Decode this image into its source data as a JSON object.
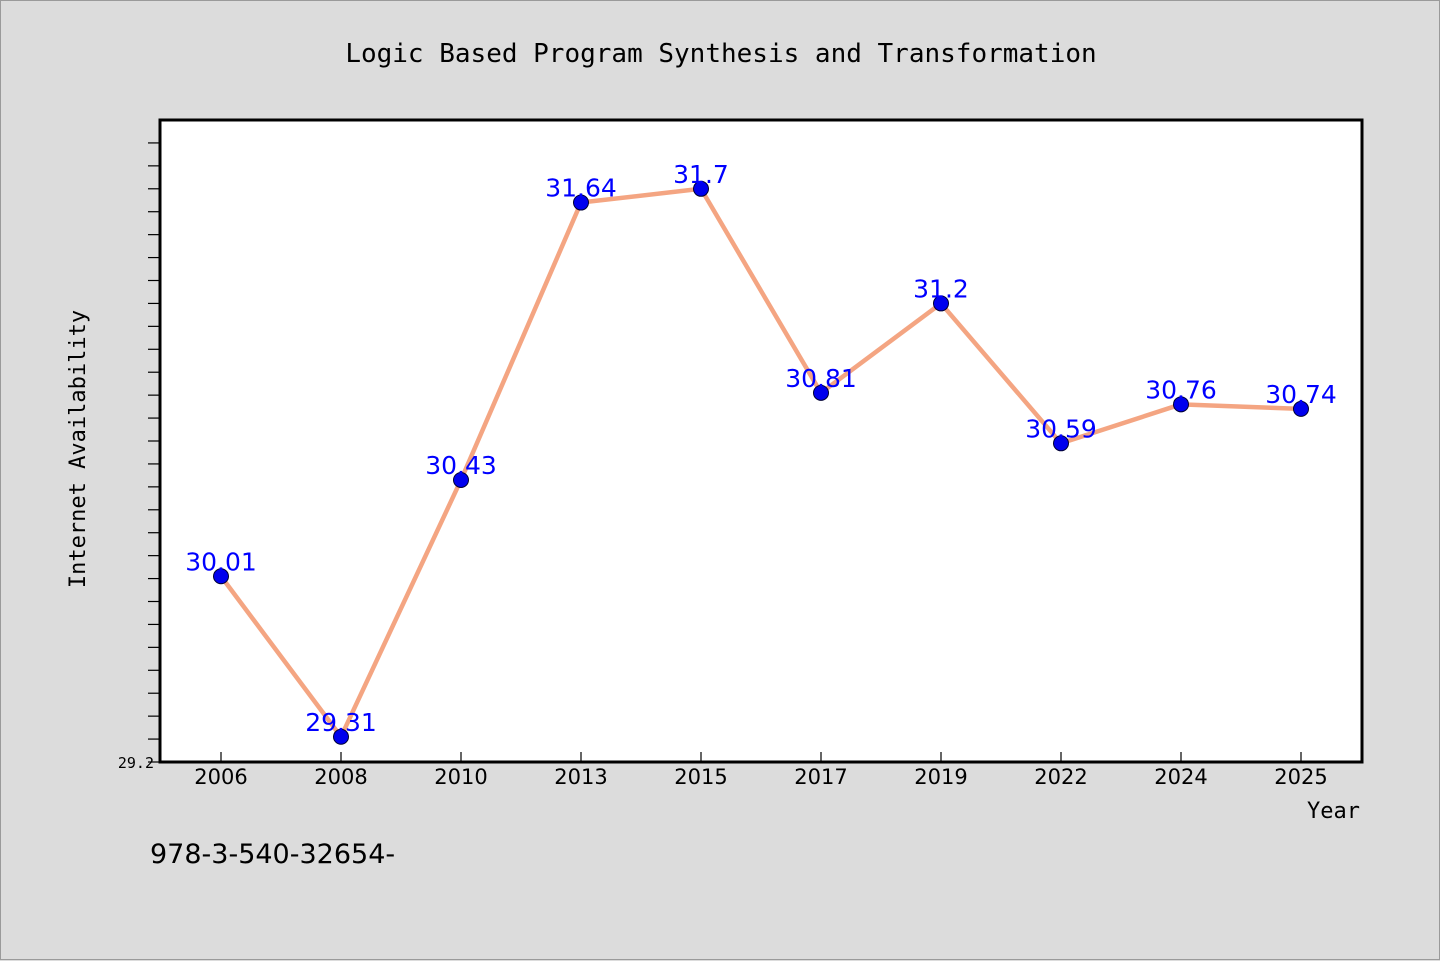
{
  "chart_data": {
    "type": "line",
    "title": "Logic Based Program Synthesis and Transformation",
    "xlabel": "Year",
    "ylabel": "Internet Availability",
    "categories": [
      "2006",
      "2008",
      "2010",
      "2013",
      "2015",
      "2017",
      "2019",
      "2022",
      "2024",
      "2025"
    ],
    "series": [
      {
        "values": [
          30.01,
          29.31,
          30.43,
          31.64,
          31.7,
          30.81,
          31.2,
          30.59,
          30.76,
          30.74
        ],
        "labels": [
          "30.01",
          "29.31",
          "30.43",
          "31.64",
          "31.7",
          "30.81",
          "31.2",
          "30.59",
          "30.76",
          "30.74"
        ]
      }
    ],
    "ylim": [
      29.2,
      32.0
    ],
    "ytick_labels": [
      "29.2"
    ],
    "grid": false,
    "line_color": "#f4a582",
    "marker_color": "#0000ee",
    "label_color": "#0000ff"
  },
  "footnote": "978-3-540-32654-"
}
